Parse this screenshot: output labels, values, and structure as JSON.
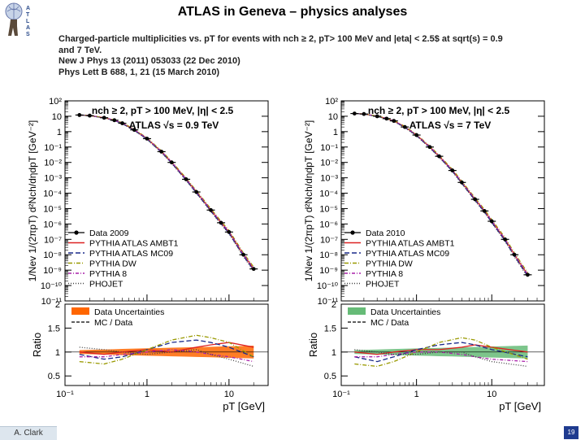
{
  "slide": {
    "title": "ATLAS in Geneva – physics analyses",
    "caption_lines": [
      "Charged-particle multiplicities vs. pT for events with nch ≥ 2, pT> 100 MeV and |eta| < 2.5$ at sqrt(s) = 0.9",
      "and 7 TeV.",
      "New J Phys 13 (2011) 053033 (22 Dec 2010)",
      "Phys Lett B 688, 1, 21 (15 March 2010)"
    ],
    "author": "A. Clark",
    "page_number": "19",
    "logo_text": "ATLAS"
  },
  "chart_data": [
    {
      "type": "scatter",
      "title": "",
      "selection_label": "nch ≥ 2, pT > 100 MeV, |η| < 2.5",
      "experiment_label": "ATLAS √s = 0.9 TeV",
      "ylabel_main": "1/Nev 1/(2πpT) d²Nch/dηdpT [GeV⁻²]",
      "ylabel_ratio": "Ratio",
      "xlabel": "pT [GeV]",
      "x_log": true,
      "y_log": true,
      "xlim": [
        0.1,
        30
      ],
      "ylim": [
        1e-11,
        100
      ],
      "ratio_ylim": [
        0.3,
        2.0
      ],
      "x_ticks": [
        "10⁻¹",
        "1",
        "10"
      ],
      "y_ticks": [
        "10²",
        "10",
        "1",
        "10⁻¹",
        "10⁻²",
        "10⁻³",
        "10⁻⁴",
        "10⁻⁵",
        "10⁻⁶",
        "10⁻⁷",
        "10⁻⁸",
        "10⁻⁹",
        "10⁻¹⁰",
        "10⁻¹¹"
      ],
      "ratio_ticks": [
        "2",
        "1.5",
        "1",
        "0.5"
      ],
      "legend": [
        "Data 2009",
        "PYTHIA ATLAS AMBT1",
        "PYTHIA ATLAS MC09",
        "PYTHIA DW",
        "PYTHIA 8",
        "PHOJET"
      ],
      "ratio_legend": [
        "Data Uncertainties",
        "MC / Data"
      ],
      "data_color": "#000000",
      "band_color": "#ff6600",
      "series": [
        {
          "name": "Data 2009",
          "x": [
            0.15,
            0.2,
            0.3,
            0.4,
            0.5,
            0.7,
            1.0,
            1.5,
            2.0,
            3.0,
            4.0,
            6.0,
            8.0,
            10.0,
            15.0,
            20.0
          ],
          "values": [
            12,
            11,
            8,
            5.5,
            3.5,
            1.3,
            0.35,
            0.05,
            0.01,
            0.0008,
            0.00012,
            8e-06,
            1.2e-06,
            3e-07,
            1e-08,
            1.2e-09
          ]
        }
      ],
      "ratio_series": [
        {
          "name": "PYTHIA ATLAS AMBT1",
          "x": [
            0.15,
            0.3,
            0.5,
            1,
            2,
            4,
            6,
            10,
            20
          ],
          "values": [
            1.0,
            0.95,
            1.0,
            1.05,
            1.0,
            1.1,
            1.15,
            1.2,
            1.1
          ]
        },
        {
          "name": "PYTHIA ATLAS MC09",
          "x": [
            0.15,
            0.3,
            0.5,
            1,
            2,
            4,
            6,
            10,
            20
          ],
          "values": [
            0.95,
            0.85,
            0.9,
            1.05,
            1.2,
            1.25,
            1.2,
            1.1,
            0.9
          ]
        },
        {
          "name": "PYTHIA DW",
          "x": [
            0.15,
            0.3,
            0.5,
            1,
            2,
            4,
            6,
            10,
            20
          ],
          "values": [
            0.8,
            0.75,
            0.85,
            1.05,
            1.25,
            1.35,
            1.3,
            1.2,
            0.9
          ]
        },
        {
          "name": "PYTHIA 8",
          "x": [
            0.15,
            0.3,
            0.5,
            1,
            2,
            4,
            6,
            10,
            20
          ],
          "values": [
            0.9,
            0.9,
            0.95,
            1.0,
            1.05,
            1.0,
            0.95,
            0.9,
            0.8
          ]
        },
        {
          "name": "PHOJET",
          "x": [
            0.15,
            0.3,
            0.5,
            1,
            2,
            4,
            6,
            10,
            20
          ],
          "values": [
            1.1,
            1.05,
            1.0,
            0.95,
            1.0,
            1.05,
            0.95,
            0.85,
            0.7
          ]
        }
      ]
    },
    {
      "type": "scatter",
      "title": "",
      "selection_label": "nch ≥ 2, pT > 100 MeV, |η| < 2.5",
      "experiment_label": "ATLAS √s = 7 TeV",
      "ylabel_main": "1/Nev 1/(2πpT) d²Nch/dηdpT [GeV⁻²]",
      "ylabel_ratio": "Ratio",
      "xlabel": "pT [GeV]",
      "x_log": true,
      "y_log": true,
      "xlim": [
        0.1,
        50
      ],
      "ylim": [
        1e-11,
        100
      ],
      "ratio_ylim": [
        0.3,
        2.0
      ],
      "x_ticks": [
        "10⁻¹",
        "1",
        "10"
      ],
      "y_ticks": [
        "10²",
        "10",
        "1",
        "10⁻¹",
        "10⁻²",
        "10⁻³",
        "10⁻⁴",
        "10⁻⁵",
        "10⁻⁶",
        "10⁻⁷",
        "10⁻⁸",
        "10⁻⁹",
        "10⁻¹⁰",
        "10⁻¹¹"
      ],
      "ratio_ticks": [
        "2",
        "1.5",
        "1",
        "0.5"
      ],
      "legend": [
        "Data 2010",
        "PYTHIA ATLAS AMBT1",
        "PYTHIA ATLAS MC09",
        "PYTHIA DW",
        "PYTHIA 8",
        "PHOJET"
      ],
      "ratio_legend": [
        "Data Uncertainties",
        "MC / Data"
      ],
      "data_color": "#000000",
      "band_color": "#66bb77",
      "series": [
        {
          "name": "Data 2010",
          "x": [
            0.15,
            0.2,
            0.3,
            0.4,
            0.5,
            0.7,
            1.0,
            1.5,
            2.0,
            3.0,
            4.0,
            6.0,
            8.0,
            10.0,
            15.0,
            20.0,
            30.0
          ],
          "values": [
            15,
            14,
            10,
            7,
            5,
            2,
            0.6,
            0.1,
            0.025,
            0.003,
            0.0005,
            4e-05,
            7e-06,
            1.5e-06,
            1e-07,
            1e-08,
            5e-10
          ]
        }
      ],
      "ratio_series": [
        {
          "name": "PYTHIA ATLAS AMBT1",
          "x": [
            0.15,
            0.3,
            0.5,
            1,
            2,
            4,
            6,
            10,
            30
          ],
          "values": [
            1.0,
            0.95,
            1.0,
            1.05,
            1.05,
            1.1,
            1.15,
            1.1,
            1.0
          ]
        },
        {
          "name": "PYTHIA ATLAS MC09",
          "x": [
            0.15,
            0.3,
            0.5,
            1,
            2,
            4,
            6,
            10,
            30
          ],
          "values": [
            0.9,
            0.8,
            0.9,
            1.05,
            1.15,
            1.2,
            1.15,
            1.05,
            0.9
          ]
        },
        {
          "name": "PYTHIA DW",
          "x": [
            0.15,
            0.3,
            0.5,
            1,
            2,
            4,
            6,
            10,
            30
          ],
          "values": [
            0.75,
            0.7,
            0.8,
            1.0,
            1.2,
            1.3,
            1.25,
            1.1,
            0.85
          ]
        },
        {
          "name": "PYTHIA 8",
          "x": [
            0.15,
            0.3,
            0.5,
            1,
            2,
            4,
            6,
            10,
            30
          ],
          "values": [
            0.9,
            0.9,
            0.95,
            1.0,
            1.0,
            0.95,
            0.9,
            0.85,
            0.8
          ]
        },
        {
          "name": "PHOJET",
          "x": [
            0.15,
            0.3,
            0.5,
            1,
            2,
            4,
            6,
            10,
            30
          ],
          "values": [
            1.05,
            1.0,
            0.95,
            0.95,
            1.0,
            1.0,
            0.9,
            0.8,
            0.7
          ]
        }
      ]
    }
  ],
  "series_styles": {
    "colors": [
      "#000000",
      "#dd2222",
      "#1a2a8a",
      "#999900",
      "#aa22aa",
      "#444444"
    ],
    "dashes": [
      "",
      "",
      "6,3",
      "5,2,1,2",
      "4,2,1,2",
      "1,2"
    ]
  }
}
